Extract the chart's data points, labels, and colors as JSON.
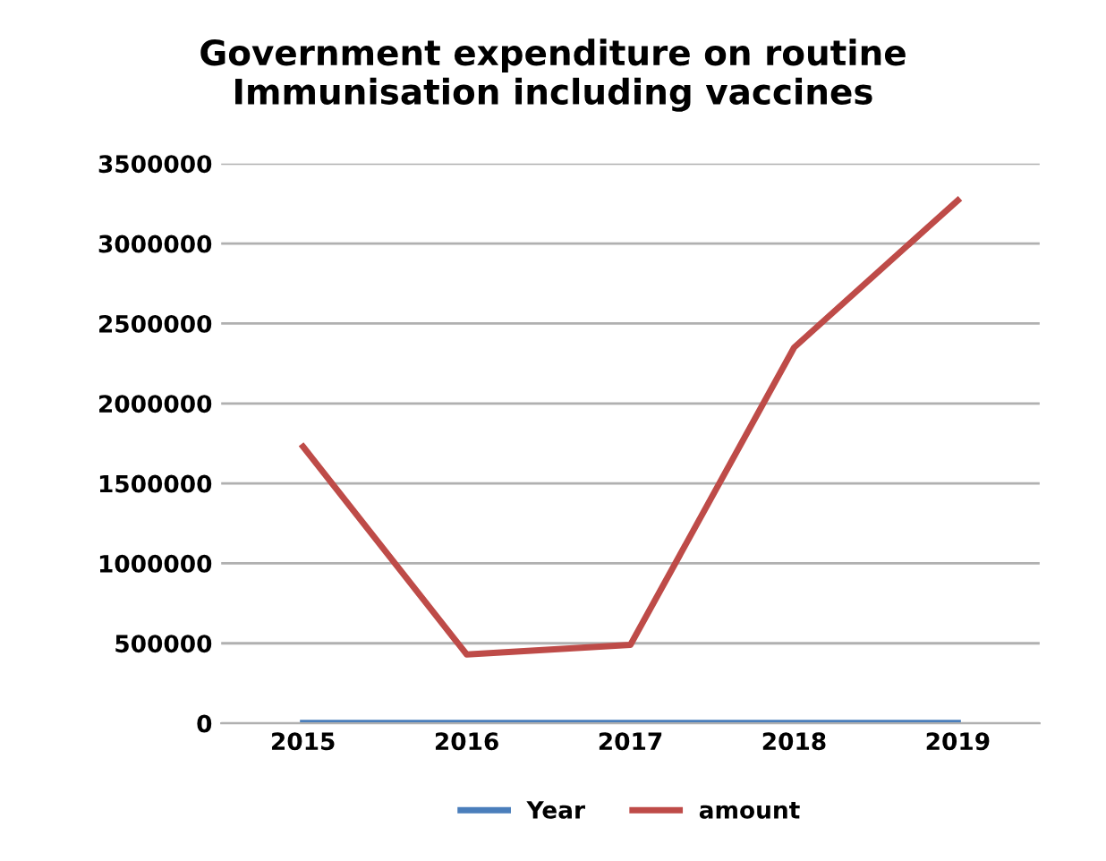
{
  "chart_data": {
    "type": "line",
    "title": "Government expenditure on routine\nImmunisation including vaccines",
    "categories": [
      "2015",
      "2016",
      "2017",
      "2018",
      "2019"
    ],
    "series": [
      {
        "name": "Year",
        "color": "#4a7ebb",
        "values": [
          2015,
          2016,
          2017,
          2018,
          2019
        ]
      },
      {
        "name": "amount",
        "color": "#be4b48",
        "values": [
          1730000,
          430000,
          490000,
          2350000,
          3270000
        ]
      }
    ],
    "ylim": [
      0,
      3500000
    ],
    "yticks": [
      0,
      500000,
      1000000,
      1500000,
      2000000,
      2500000,
      3000000,
      3500000
    ],
    "grid": "y",
    "legend": "bottom",
    "marker": "none",
    "line_style": "solid"
  }
}
